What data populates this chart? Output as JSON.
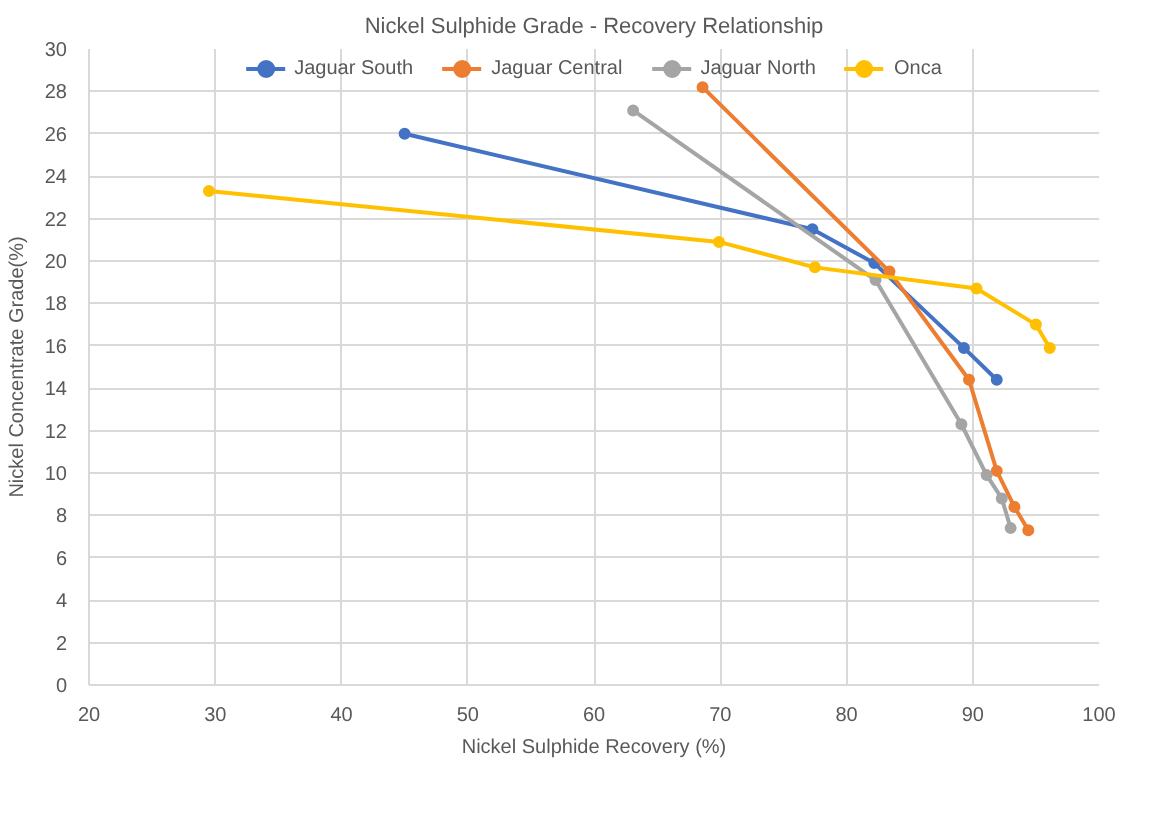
{
  "chart_data": {
    "type": "line",
    "title": "Nickel Sulphide Grade - Recovery Relationship",
    "xlabel": "Nickel Sulphide Recovery (%)",
    "ylabel": "Nickel Concentrate Grade(%)",
    "xlim": [
      20,
      100
    ],
    "xticks": [
      20,
      30,
      40,
      50,
      60,
      70,
      80,
      90,
      100
    ],
    "ylim": [
      0,
      30
    ],
    "yticks": [
      0,
      2,
      4,
      6,
      8,
      10,
      12,
      14,
      16,
      18,
      20,
      22,
      24,
      26,
      28,
      30
    ],
    "grid": true,
    "legend": "top",
    "marker": "circle",
    "series": [
      {
        "name": "Jaguar South",
        "color": "#4472c4",
        "x": [
          45,
          77.3,
          82.2,
          89.3,
          91.9
        ],
        "values": [
          26,
          21.5,
          19.9,
          15.9,
          14.4
        ]
      },
      {
        "name": "Jaguar Central",
        "color": "#ed7d31",
        "x": [
          68.6,
          83.4,
          89.7,
          91.9,
          93.3,
          94.4
        ],
        "values": [
          28.2,
          19.5,
          14.4,
          10.1,
          8.4,
          7.3
        ]
      },
      {
        "name": "Jaguar North",
        "color": "#a5a5a5",
        "x": [
          63.1,
          82.3,
          89.1,
          91.1,
          92.3,
          93.0
        ],
        "values": [
          27.1,
          19.1,
          12.3,
          9.9,
          8.8,
          7.4
        ]
      },
      {
        "name": "Onca",
        "color": "#ffc000",
        "x": [
          29.5,
          69.9,
          77.5,
          90.3,
          95.0,
          96.1
        ],
        "values": [
          23.3,
          20.9,
          19.7,
          18.7,
          17.0,
          15.9
        ]
      }
    ]
  }
}
